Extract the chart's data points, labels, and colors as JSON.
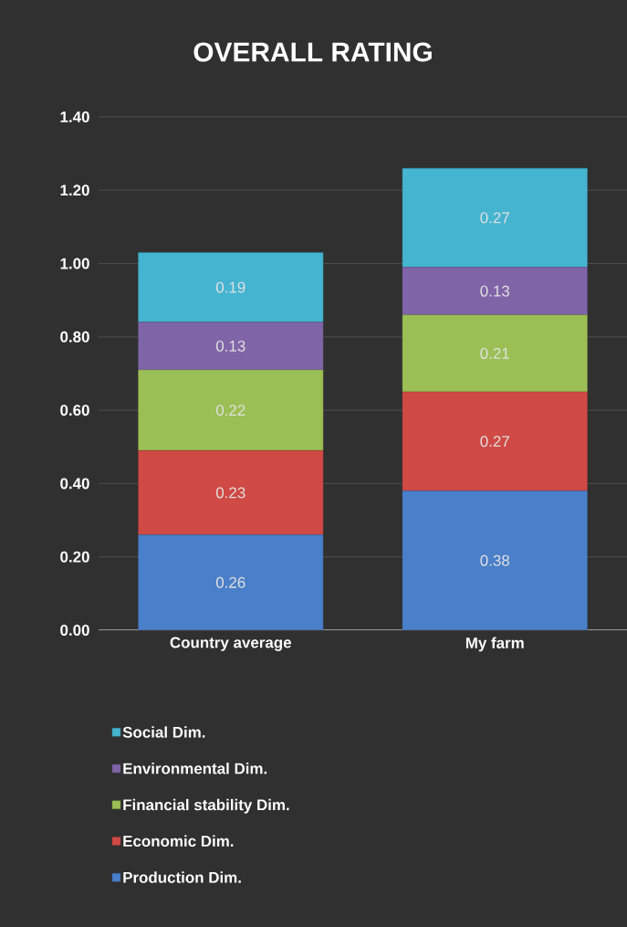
{
  "chart_data": {
    "type": "bar",
    "title": "OVERALL RATING",
    "categories": [
      "Country average",
      "My farm"
    ],
    "stacked": true,
    "series": [
      {
        "name": "Production Dim.",
        "color": "#4a7fc9",
        "values": [
          0.26,
          0.38
        ]
      },
      {
        "name": "Economic Dim.",
        "color": "#cf4a45",
        "values": [
          0.23,
          0.27
        ]
      },
      {
        "name": "Financial stability Dim.",
        "color": "#9bbf55",
        "values": [
          0.22,
          0.21
        ]
      },
      {
        "name": "Environmental Dim.",
        "color": "#8064a8",
        "values": [
          0.13,
          0.13
        ]
      },
      {
        "name": "Social Dim.",
        "color": "#45b4d0",
        "values": [
          0.19,
          0.27
        ]
      }
    ],
    "ylim": [
      0,
      1.4
    ],
    "yticks": [
      {
        "value": 0,
        "label": "0.00"
      },
      {
        "value": 0.2,
        "label": "0.20"
      },
      {
        "value": 0.4,
        "label": "0.40"
      },
      {
        "value": 0.6,
        "label": "0.60"
      },
      {
        "value": 0.8,
        "label": "0.80"
      },
      {
        "value": 1.0,
        "label": "1.00"
      },
      {
        "value": 1.2,
        "label": "1.20"
      },
      {
        "value": 1.4,
        "label": "1.40"
      }
    ],
    "grid": "y",
    "legend": "bottom",
    "data_labels": true
  }
}
